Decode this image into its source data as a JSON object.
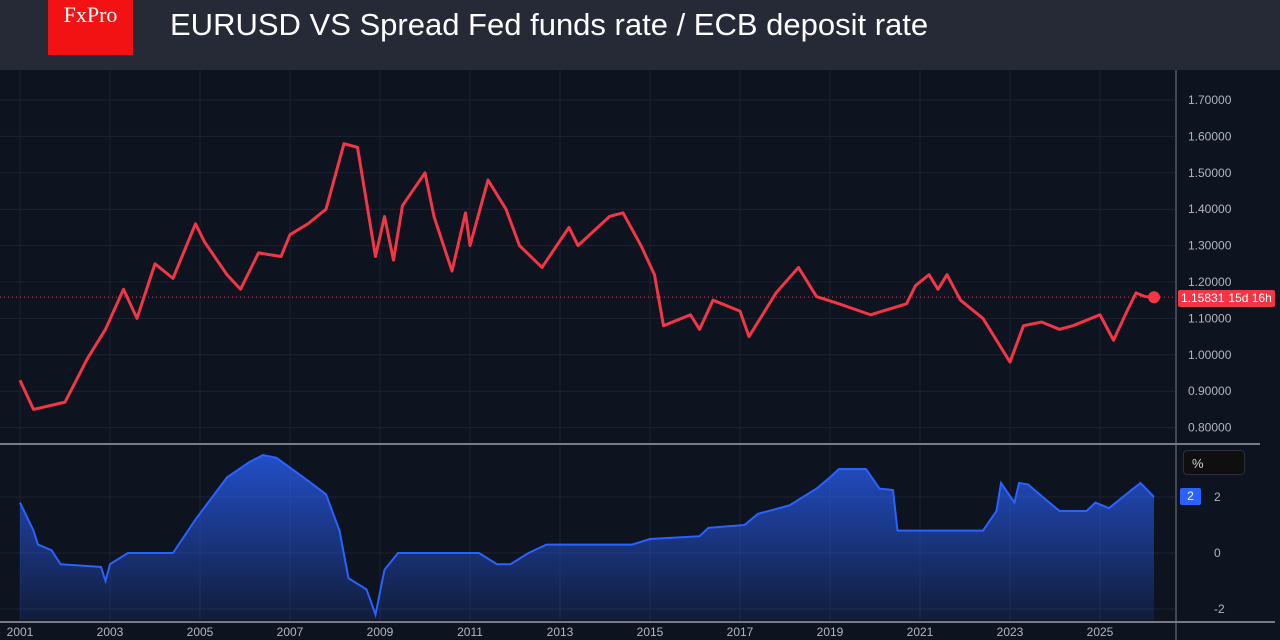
{
  "header": {
    "logo": "FxPro",
    "title": "EURUSD VS Spread Fed funds rate / ECB deposit rate"
  },
  "chart_data": [
    {
      "type": "line",
      "name": "EURUSD",
      "color": "#f23645",
      "ylim": [
        0.75,
        1.75
      ],
      "yticks": [
        "1.70000",
        "1.60000",
        "1.50000",
        "1.40000",
        "1.30000",
        "1.20000",
        "1.10000",
        "1.00000",
        "0.90000",
        "0.80000"
      ],
      "last_price": "1.15831",
      "countdown": "15d 16h",
      "x": [
        2001.0,
        2001.3,
        2002.0,
        2002.5,
        2002.9,
        2003.3,
        2003.6,
        2004.0,
        2004.4,
        2004.9,
        2005.1,
        2005.6,
        2005.9,
        2006.3,
        2006.8,
        2007.0,
        2007.4,
        2007.8,
        2008.2,
        2008.5,
        2008.9,
        2009.1,
        2009.3,
        2009.5,
        2010.0,
        2010.2,
        2010.6,
        2010.9,
        2011.0,
        2011.4,
        2011.8,
        2012.1,
        2012.6,
        2013.2,
        2013.4,
        2014.1,
        2014.4,
        2014.8,
        2015.1,
        2015.3,
        2015.9,
        2016.1,
        2016.4,
        2017.0,
        2017.2,
        2017.8,
        2018.3,
        2018.7,
        2019.2,
        2019.9,
        2020.7,
        2020.9,
        2021.2,
        2021.4,
        2021.6,
        2021.9,
        2022.4,
        2023.0,
        2023.3,
        2023.7,
        2024.1,
        2024.4,
        2025.0,
        2025.3,
        2025.6,
        2025.8,
        2026.0,
        2026.2
      ],
      "values": [
        0.93,
        0.85,
        0.87,
        0.99,
        1.07,
        1.18,
        1.1,
        1.25,
        1.21,
        1.36,
        1.31,
        1.22,
        1.18,
        1.28,
        1.27,
        1.33,
        1.36,
        1.4,
        1.58,
        1.57,
        1.27,
        1.38,
        1.26,
        1.41,
        1.5,
        1.38,
        1.23,
        1.39,
        1.3,
        1.48,
        1.4,
        1.3,
        1.24,
        1.35,
        1.3,
        1.38,
        1.39,
        1.3,
        1.22,
        1.08,
        1.11,
        1.07,
        1.15,
        1.12,
        1.05,
        1.17,
        1.24,
        1.16,
        1.14,
        1.11,
        1.14,
        1.19,
        1.22,
        1.18,
        1.22,
        1.15,
        1.1,
        0.98,
        1.08,
        1.09,
        1.07,
        1.08,
        1.11,
        1.04,
        1.12,
        1.17,
        1.16,
        1.158
      ]
    },
    {
      "type": "area",
      "name": "Spread",
      "color": "#2962ff",
      "unit": "%",
      "last_value": "2",
      "ylim": [
        -2.5,
        3.6
      ],
      "yticks": [
        "2",
        "0",
        "-2"
      ],
      "x": [
        2001.0,
        2001.3,
        2001.4,
        2001.7,
        2001.9,
        2002.8,
        2002.9,
        2003.0,
        2003.4,
        2004.4,
        2004.9,
        2005.6,
        2006.1,
        2006.4,
        2006.7,
        2007.3,
        2007.8,
        2008.1,
        2008.3,
        2008.7,
        2008.9,
        2009.1,
        2009.4,
        2011.2,
        2011.6,
        2011.9,
        2012.3,
        2012.7,
        2014.6,
        2015.0,
        2016.1,
        2016.3,
        2017.1,
        2017.4,
        2018.1,
        2018.7,
        2019.0,
        2019.2,
        2019.8,
        2020.1,
        2020.4,
        2020.5,
        2022.4,
        2022.7,
        2022.8,
        2023.1,
        2023.2,
        2023.4,
        2023.8,
        2024.1,
        2024.7,
        2024.9,
        2025.2,
        2025.7,
        2025.9,
        2026.2
      ],
      "values": [
        1.8,
        0.8,
        0.3,
        0.1,
        -0.4,
        -0.5,
        -1.0,
        -0.4,
        0,
        0,
        1.2,
        2.7,
        3.25,
        3.5,
        3.4,
        2.7,
        2.1,
        0.8,
        -0.9,
        -1.3,
        -2.2,
        -0.6,
        0,
        0,
        -0.4,
        -0.4,
        0,
        0.3,
        0.3,
        0.5,
        0.6,
        0.9,
        1.0,
        1.4,
        1.7,
        2.3,
        2.7,
        3.0,
        3.0,
        2.3,
        2.25,
        0.8,
        0.8,
        1.5,
        2.5,
        1.8,
        2.5,
        2.45,
        1.9,
        1.5,
        1.5,
        1.8,
        1.6,
        2.25,
        2.5,
        2.0
      ]
    },
    {
      "type": "axis",
      "xticks": [
        "2001",
        "2003",
        "2005",
        "2007",
        "2009",
        "2011",
        "2013",
        "2015",
        "2017",
        "2019",
        "2021",
        "2023",
        "2025"
      ]
    }
  ]
}
